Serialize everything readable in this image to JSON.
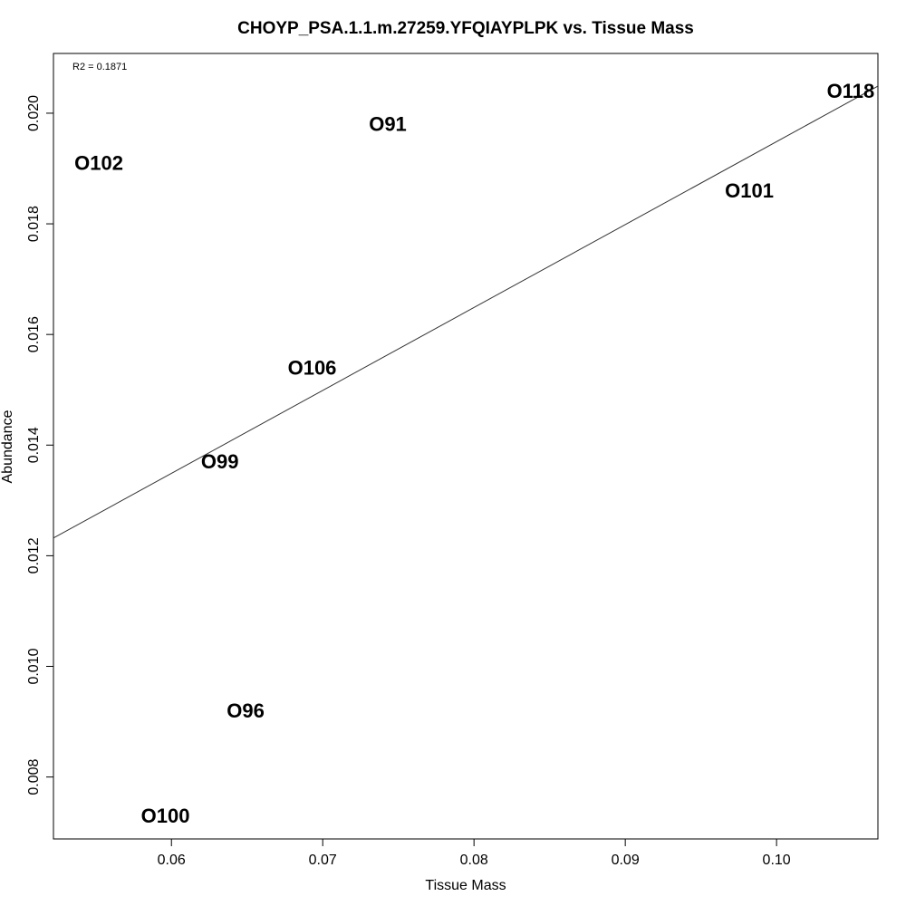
{
  "chart_data": {
    "type": "scatter",
    "title": "CHOYP_PSA.1.1.m.27259.YFQIAYPLPK vs. Tissue Mass",
    "xlabel": "Tissue Mass",
    "ylabel": "Abundance",
    "annotation": "R2 = 0.1871",
    "xlim": [
      0.0522,
      0.1067
    ],
    "ylim": [
      0.00688,
      0.02108
    ],
    "x_ticks": [
      0.06,
      0.07,
      0.08,
      0.09,
      0.1
    ],
    "x_tick_labels": [
      "0.06",
      "0.07",
      "0.08",
      "0.09",
      "0.10"
    ],
    "y_ticks": [
      0.008,
      0.01,
      0.012,
      0.014,
      0.016,
      0.018,
      0.02
    ],
    "y_tick_labels": [
      "0.008",
      "0.010",
      "0.012",
      "0.014",
      "0.016",
      "0.018",
      "0.020"
    ],
    "points": [
      {
        "label": "O102",
        "x": 0.0552,
        "y": 0.0191
      },
      {
        "label": "O91",
        "x": 0.0743,
        "y": 0.0198
      },
      {
        "label": "O118",
        "x": 0.1049,
        "y": 0.0204
      },
      {
        "label": "O101",
        "x": 0.0982,
        "y": 0.0186
      },
      {
        "label": "O106",
        "x": 0.0693,
        "y": 0.0154
      },
      {
        "label": "O99",
        "x": 0.0632,
        "y": 0.0137
      },
      {
        "label": "O96",
        "x": 0.0649,
        "y": 0.0092
      },
      {
        "label": "O100",
        "x": 0.0596,
        "y": 0.0073
      }
    ],
    "regression_line": {
      "x": [
        0.0522,
        0.1067
      ],
      "y": [
        0.01232,
        0.02049
      ]
    },
    "grid": false,
    "legend": "none"
  }
}
